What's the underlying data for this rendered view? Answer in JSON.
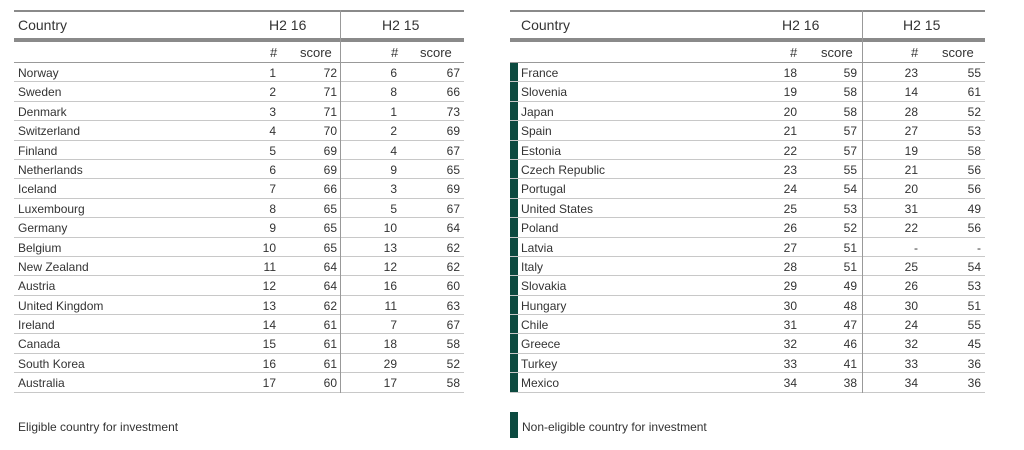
{
  "headers": {
    "country": "Country",
    "period1": "H2 16",
    "period2": "H2 15",
    "rank": "#",
    "score": "score"
  },
  "colors": {
    "bar": "#0c4a40",
    "rule": "#8a8a8a"
  },
  "left_rows": [
    {
      "country": "Norway",
      "r16": "1",
      "s16": "72",
      "r15": "6",
      "s15": "67"
    },
    {
      "country": "Sweden",
      "r16": "2",
      "s16": "71",
      "r15": "8",
      "s15": "66"
    },
    {
      "country": "Denmark",
      "r16": "3",
      "s16": "71",
      "r15": "1",
      "s15": "73"
    },
    {
      "country": "Switzerland",
      "r16": "4",
      "s16": "70",
      "r15": "2",
      "s15": "69"
    },
    {
      "country": "Finland",
      "r16": "5",
      "s16": "69",
      "r15": "4",
      "s15": "67"
    },
    {
      "country": "Netherlands",
      "r16": "6",
      "s16": "69",
      "r15": "9",
      "s15": "65"
    },
    {
      "country": "Iceland",
      "r16": "7",
      "s16": "66",
      "r15": "3",
      "s15": "69"
    },
    {
      "country": "Luxembourg",
      "r16": "8",
      "s16": "65",
      "r15": "5",
      "s15": "67"
    },
    {
      "country": "Germany",
      "r16": "9",
      "s16": "65",
      "r15": "10",
      "s15": "64"
    },
    {
      "country": "Belgium",
      "r16": "10",
      "s16": "65",
      "r15": "13",
      "s15": "62"
    },
    {
      "country": "New Zealand",
      "r16": "11",
      "s16": "64",
      "r15": "12",
      "s15": "62"
    },
    {
      "country": "Austria",
      "r16": "12",
      "s16": "64",
      "r15": "16",
      "s15": "60"
    },
    {
      "country": "United Kingdom",
      "r16": "13",
      "s16": "62",
      "r15": "11",
      "s15": "63"
    },
    {
      "country": "Ireland",
      "r16": "14",
      "s16": "61",
      "r15": "7",
      "s15": "67"
    },
    {
      "country": "Canada",
      "r16": "15",
      "s16": "61",
      "r15": "18",
      "s15": "58"
    },
    {
      "country": "South Korea",
      "r16": "16",
      "s16": "61",
      "r15": "29",
      "s15": "52"
    },
    {
      "country": "Australia",
      "r16": "17",
      "s16": "60",
      "r15": "17",
      "s15": "58"
    }
  ],
  "right_rows": [
    {
      "country": "France",
      "r16": "18",
      "s16": "59",
      "r15": "23",
      "s15": "55"
    },
    {
      "country": "Slovenia",
      "r16": "19",
      "s16": "58",
      "r15": "14",
      "s15": "61"
    },
    {
      "country": "Japan",
      "r16": "20",
      "s16": "58",
      "r15": "28",
      "s15": "52"
    },
    {
      "country": "Spain",
      "r16": "21",
      "s16": "57",
      "r15": "27",
      "s15": "53"
    },
    {
      "country": "Estonia",
      "r16": "22",
      "s16": "57",
      "r15": "19",
      "s15": "58"
    },
    {
      "country": "Czech Republic",
      "r16": "23",
      "s16": "55",
      "r15": "21",
      "s15": "56"
    },
    {
      "country": "Portugal",
      "r16": "24",
      "s16": "54",
      "r15": "20",
      "s15": "56"
    },
    {
      "country": "United States",
      "r16": "25",
      "s16": "53",
      "r15": "31",
      "s15": "49"
    },
    {
      "country": "Poland",
      "r16": "26",
      "s16": "52",
      "r15": "22",
      "s15": "56"
    },
    {
      "country": "Latvia",
      "r16": "27",
      "s16": "51",
      "r15": "-",
      "s15": "-"
    },
    {
      "country": "Italy",
      "r16": "28",
      "s16": "51",
      "r15": "25",
      "s15": "54"
    },
    {
      "country": "Slovakia",
      "r16": "29",
      "s16": "49",
      "r15": "26",
      "s15": "53"
    },
    {
      "country": "Hungary",
      "r16": "30",
      "s16": "48",
      "r15": "30",
      "s15": "51"
    },
    {
      "country": "Chile",
      "r16": "31",
      "s16": "47",
      "r15": "24",
      "s15": "55"
    },
    {
      "country": "Greece",
      "r16": "32",
      "s16": "46",
      "r15": "32",
      "s15": "45"
    },
    {
      "country": "Turkey",
      "r16": "33",
      "s16": "41",
      "r15": "33",
      "s15": "36"
    },
    {
      "country": "Mexico",
      "r16": "34",
      "s16": "38",
      "r15": "34",
      "s15": "36"
    }
  ],
  "legend": {
    "eligible": "Eligible country for investment",
    "non_eligible": "Non-eligible country for investment"
  }
}
